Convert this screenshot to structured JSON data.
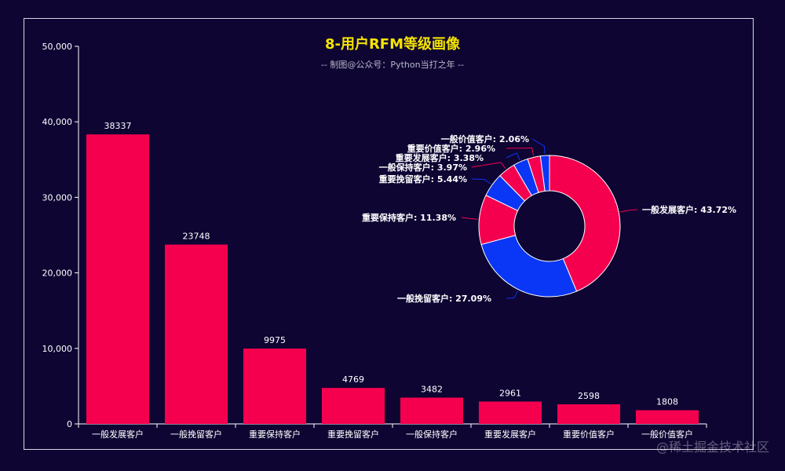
{
  "chart_data": [
    {
      "type": "bar",
      "title": "8-用户RFM等级画像",
      "subtitle": "-- 制图@公众号：Python当打之年 --",
      "categories": [
        "一般发展客户",
        "一般挽留客户",
        "重要保持客户",
        "重要挽留客户",
        "一般保持客户",
        "重要发展客户",
        "重要价值客户",
        "一般价值客户"
      ],
      "values": [
        38337,
        23748,
        9975,
        4769,
        3482,
        2961,
        2598,
        1808
      ],
      "ylim": [
        0,
        50000
      ],
      "yticks": [
        0,
        10000,
        20000,
        30000,
        40000,
        50000
      ],
      "ytick_labels": [
        "0",
        "10,000",
        "20,000",
        "30,000",
        "40,000",
        "50,000"
      ],
      "bar_color": "#f5004f"
    },
    {
      "type": "pie",
      "variant": "donut",
      "slices": [
        {
          "name": "一般发展客户",
          "percent": 43.72,
          "label": "一般发展客户: 43.72%",
          "color": "#f5004f"
        },
        {
          "name": "一般挽留客户",
          "percent": 27.09,
          "label": "一般挽留客户: 27.09%",
          "color": "#0a36f5"
        },
        {
          "name": "重要保持客户",
          "percent": 11.38,
          "label": "重要保持客户: 11.38%",
          "color": "#f5004f"
        },
        {
          "name": "重要挽留客户",
          "percent": 5.44,
          "label": "重要挽留客户: 5.44%",
          "color": "#0a36f5"
        },
        {
          "name": "一般保持客户",
          "percent": 3.97,
          "label": "一般保持客户: 3.97%",
          "color": "#f5004f"
        },
        {
          "name": "重要发展客户",
          "percent": 3.38,
          "label": "重要发展客户: 3.38%",
          "color": "#0a36f5"
        },
        {
          "name": "重要价值客户",
          "percent": 2.96,
          "label": "重要价值客户: 2.96%",
          "color": "#f5004f"
        },
        {
          "name": "一般价值客户",
          "percent": 2.06,
          "label": "一般价值客户: 2.06%",
          "color": "#0a36f5"
        }
      ]
    }
  ],
  "watermark": "@稀土掘金技术社区",
  "colors": {
    "background": "#0e0533",
    "title": "#f5e400",
    "frame": "#d8d8e0"
  }
}
